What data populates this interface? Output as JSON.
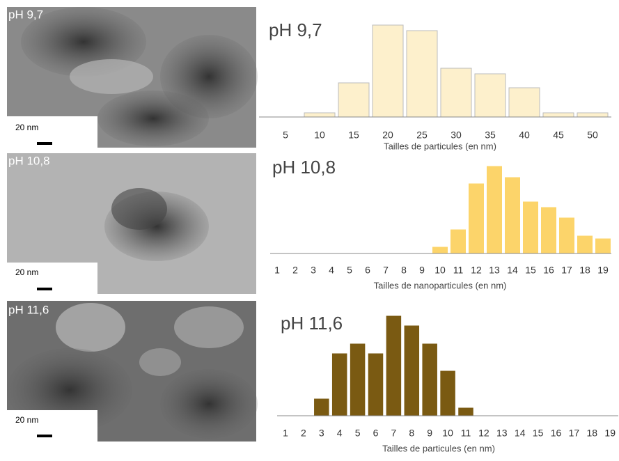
{
  "images": [
    {
      "label": "pH 9,7",
      "scale": "20 nm"
    },
    {
      "label": "pH 10,8",
      "scale": "20 nm"
    },
    {
      "label": "pH 11,6",
      "scale": "20 nm"
    }
  ],
  "chart_data": [
    {
      "type": "bar",
      "title": "pH 9,7",
      "x_label": "Tailles de particules (en nm)",
      "categories": [
        "5",
        "10",
        "15",
        "20",
        "25",
        "30",
        "35",
        "40",
        "45",
        "50"
      ],
      "values": [
        0,
        6,
        49,
        132,
        124,
        70,
        62,
        42,
        6,
        6
      ],
      "color": "#fdf0cc"
    },
    {
      "type": "bar",
      "title": "pH 10,8",
      "x_label": "Tailles de nanoparticules (en nm)",
      "categories": [
        "1",
        "2",
        "3",
        "4",
        "5",
        "6",
        "7",
        "8",
        "9",
        "10",
        "11",
        "12",
        "13",
        "14",
        "15",
        "16",
        "17",
        "18",
        "19"
      ],
      "values": [
        0,
        0,
        0,
        0,
        0,
        0,
        0,
        0,
        0,
        10,
        35,
        101,
        126,
        110,
        75,
        67,
        52,
        26,
        22
      ],
      "color": "#fcd46a"
    },
    {
      "type": "bar",
      "title": "pH 11,6",
      "x_label": "Tailles de particules (en nm)",
      "categories": [
        "1",
        "2",
        "3",
        "4",
        "5",
        "6",
        "7",
        "8",
        "9",
        "10",
        "11",
        "12",
        "13",
        "14",
        "15",
        "16",
        "17",
        "18",
        "19"
      ],
      "values": [
        0,
        0,
        25,
        90,
        104,
        90,
        144,
        130,
        104,
        65,
        12,
        0,
        0,
        0,
        0,
        0,
        0,
        0,
        0
      ],
      "color": "#7a5a12"
    }
  ]
}
